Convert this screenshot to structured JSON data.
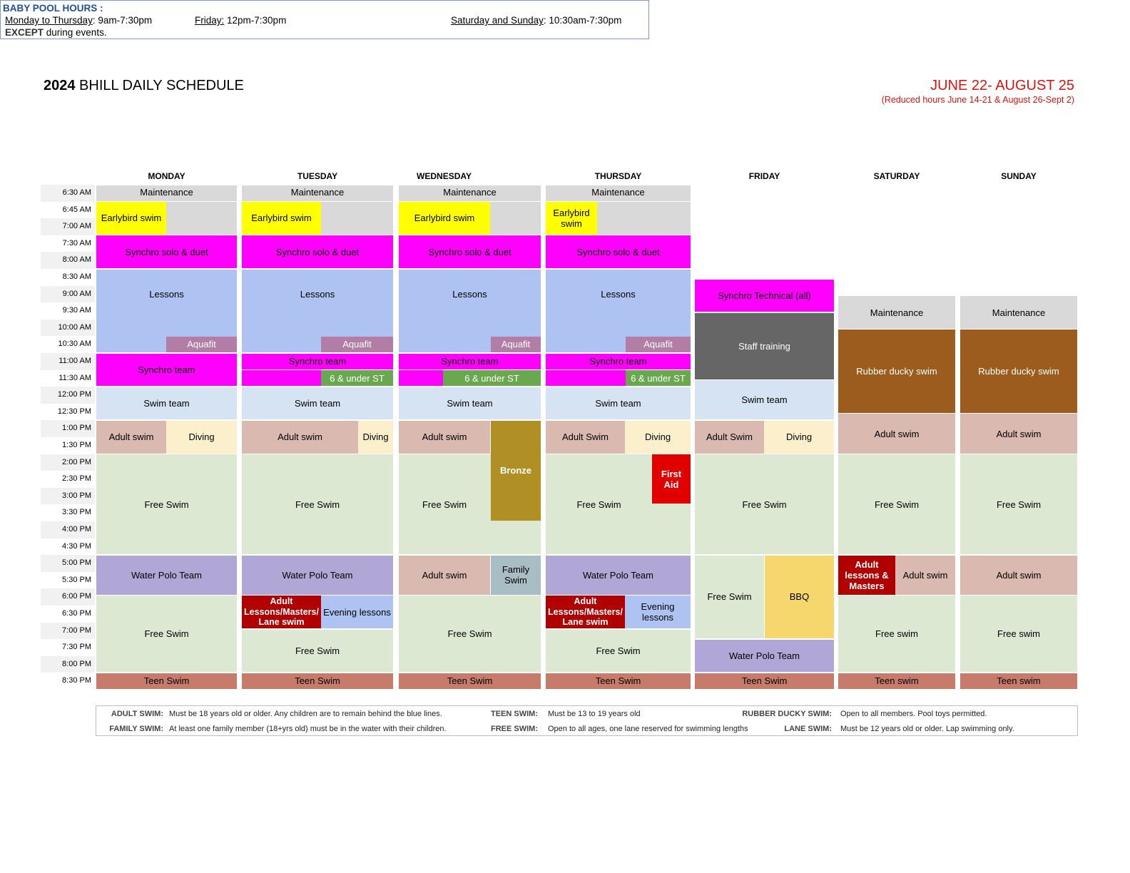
{
  "header": {
    "year": "2024",
    "title_rest": " BHILL DAILY SCHEDULE",
    "dates": "JUNE 22- AUGUST 25",
    "reduced": "(Reduced hours June 14-21 & August 26-Sept 2)"
  },
  "baby_pool": {
    "title": "BABY POOL HOURS :",
    "mon_thu_label": "Monday to Thursday",
    "mon_thu_hours": ":  9am-7:30pm",
    "fri_label": "Friday:",
    "fri_hours": " 12pm-7:30pm",
    "sat_sun_label": "Saturday and Sunday",
    "sat_sun_hours": ": 10:30am-7:30pm",
    "except_bold": "EXCEPT",
    "except_rest": " during events."
  },
  "days": [
    "MONDAY",
    "TUESDAY",
    "WEDNESDAY",
    "THURSDAY",
    "FRIDAY",
    "SATURDAY",
    "SUNDAY"
  ],
  "times": [
    "6:30 AM",
    "6:45 AM",
    "7:00 AM",
    "7:30 AM",
    "8:00 AM",
    "8:30 AM",
    "9:00 AM",
    "9:30 AM",
    "10:00 AM",
    "10:30 AM",
    "11:00 AM",
    "11:30 AM",
    "12:00 PM",
    "12:30 PM",
    "1:00 PM",
    "1:30 PM",
    "2:00 PM",
    "2:30 PM",
    "3:00 PM",
    "3:30 PM",
    "4:00 PM",
    "4:30 PM",
    "5:00 PM",
    "5:30 PM",
    "6:00 PM",
    "6:30 PM",
    "7:00 PM",
    "7:30 PM",
    "8:00 PM",
    "8:30 PM"
  ],
  "colors": {
    "maintenance": "#d9d9d9",
    "earlybird": "#ffff00",
    "synchro": "#ff00ff",
    "lessons": "#aec3f2",
    "aquafit": "#b27ea6",
    "under6": "#6aa84f",
    "swim_team": "#d6e3f3",
    "adult": "#dab9b0",
    "diving": "#fcf0cc",
    "free": "#dde8d3",
    "water_polo": "#b0a7d6",
    "teen": "#c77c6b",
    "adult_lessons": "#b00000",
    "bronze": "#b08f24",
    "first_aid": "#e00000",
    "family": "#a9bec4",
    "staff": "#666666",
    "ducky": "#9c5c1d",
    "bbq": "#f5d76e"
  },
  "blocks": {
    "mon": {
      "maint": "Maintenance",
      "early": "Earlybird swim",
      "synchro": "Synchro solo & duet",
      "lessons": "Lessons",
      "aquafit": "Aquafit",
      "synteam": "Synchro team",
      "swimteam": "Swim team",
      "adult": "Adult swim",
      "diving": "Diving",
      "free1": "Free Swim",
      "wp": "Water Polo Team",
      "free2": "Free Swim",
      "teen": "Teen Swim"
    },
    "tue": {
      "maint": "Maintenance",
      "early": "Earlybird swim",
      "synchro": "Synchro solo & duet",
      "lessons": "Lessons",
      "aquafit": "Aquafit",
      "synteam": "Synchro team",
      "under6": "6 & under ST",
      "swimteam": "Swim team",
      "adult": "Adult swim",
      "diving": "Diving",
      "free1": "Free Swim",
      "wp": "Water Polo Team",
      "adultles": "Adult Lessons/Masters/ Lane swim",
      "evening": "Evening lessons",
      "free2": "Free Swim",
      "teen": "Teen Swim"
    },
    "wed": {
      "maint": "Maintenance",
      "early": "Earlybird swim",
      "synchro": "Synchro solo & duet",
      "lessons": "Lessons",
      "aquafit": "Aquafit",
      "synteam": "Synchro team",
      "under6": "6 & under ST",
      "swimteam": "Swim team",
      "adult": "Adult swim",
      "bronze": "Bronze",
      "free1": "Free Swim",
      "adult2": "Adult swim",
      "family": "Family Swim",
      "free2": "Free Swim",
      "teen": "Teen Swim"
    },
    "thu": {
      "maint": "Maintenance",
      "early": "Earlybird swim",
      "synchro": "Synchro solo & duet",
      "lessons": "Lessons",
      "aquafit": "Aquafit",
      "synteam": "Synchro team",
      "under6": "6 & under ST",
      "swimteam": "Swim team",
      "adult": "Adult Swim",
      "diving": "Diving",
      "firstaid": "First Aid",
      "free1": "Free Swim",
      "wp": "Water Polo Team",
      "adultles": "Adult Lessons/Masters/ Lane swim",
      "evening": "Evening lessons",
      "free2": "Free Swim",
      "teen": "Teen Swim"
    },
    "fri": {
      "syntech": "Synchro Technical (all)",
      "staff": "Staff training",
      "swimteam": "Swim team",
      "adult": "Adult Swim",
      "diving": "Diving",
      "free1": "Free Swim",
      "free2": "Free Swim",
      "bbq": "BBQ",
      "wp": "Water Polo Team",
      "teen": "Teen Swim"
    },
    "sat": {
      "maint": "Maintenance",
      "ducky": "Rubber ducky swim",
      "adult": "Adult swim",
      "free1": "Free Swim",
      "adultles": "Adult lessons & Masters",
      "adult2": "Adult swim",
      "free2": "Free swim",
      "teen": "Teen swim"
    },
    "sun": {
      "maint": "Maintenance",
      "ducky": "Rubber ducky swim",
      "adult": "Adult swim",
      "free1": "Free Swim",
      "adult2": "Adult swim",
      "free2": "Free swim",
      "teen": "Teen swim"
    }
  },
  "legend": {
    "adult_k": "ADULT SWIM:",
    "adult_v": "Must be 18 years old or older. Any children are to remain behind the blue lines.",
    "family_k": "FAMILY SWIM:",
    "family_v": "At least one family member (18+yrs old) must be in the water with their children.",
    "teen_k": "TEEN SWIM:",
    "teen_v": "Must be 13 to 19 years old",
    "free_k": "FREE SWIM:",
    "free_v": "Open to all ages, one lane reserved for swimming lengths",
    "ducky_k": "RUBBER DUCKY SWIM:",
    "ducky_v": "Open to all members. Pool toys permitted.",
    "lane_k": "LANE SWIM:",
    "lane_v": "Must be 12 years old or older. Lap swimming only."
  }
}
